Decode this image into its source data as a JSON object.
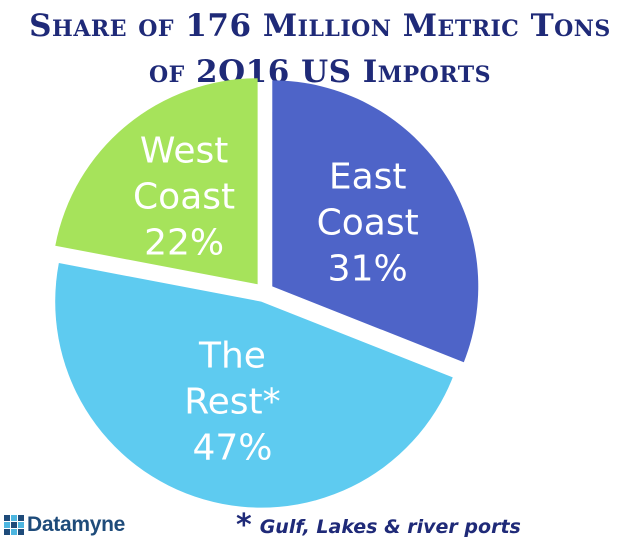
{
  "chart_data": {
    "type": "pie",
    "title_line1": "Share of 176 Million Metric Tons",
    "title_line2": "of 2Q16 US Imports",
    "slices": [
      {
        "label_lines": [
          "East",
          "Coast",
          "31%"
        ],
        "value": 31,
        "color": "#4e64c8",
        "text_color": "#ffffff"
      },
      {
        "label_lines": [
          "The",
          "Rest*",
          "47%"
        ],
        "value": 47,
        "color": "#5ecbf0",
        "text_color": "#ffffff"
      },
      {
        "label_lines": [
          "West",
          "Coast",
          "22%"
        ],
        "value": 22,
        "color": "#a6e35b",
        "text_color": "#ffffff"
      }
    ],
    "footnote_mark": "*",
    "footnote": "Gulf, Lakes & river ports"
  },
  "logo": {
    "text": "Datamyne",
    "color": "#1e4b7a",
    "accent": "#4db6e0"
  }
}
